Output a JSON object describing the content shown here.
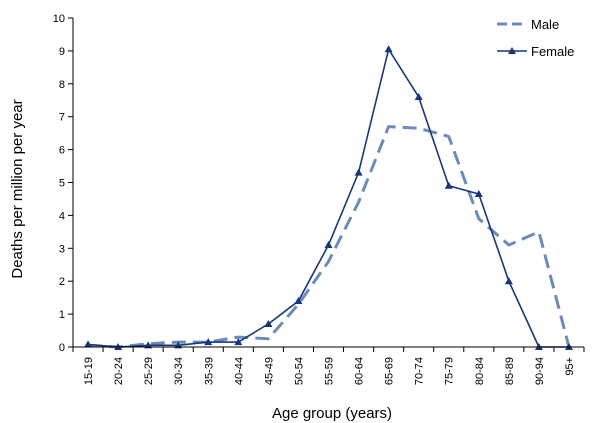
{
  "chart_data": {
    "type": "line",
    "title": "",
    "xlabel": "Age group (years)",
    "ylabel": "Deaths per million per year",
    "categories": [
      "15-19",
      "20-24",
      "25-29",
      "30-34",
      "35-39",
      "40-44",
      "45-49",
      "50-54",
      "55-59",
      "60-64",
      "65-69",
      "70-74",
      "75-79",
      "80-84",
      "85-89",
      "90-94",
      "95+"
    ],
    "ylim": [
      0,
      10
    ],
    "yticks": [
      0,
      1,
      2,
      3,
      4,
      5,
      6,
      7,
      8,
      9,
      10
    ],
    "grid": false,
    "legend_position": "top-right",
    "series": [
      {
        "name": "Male",
        "style": "dashed",
        "color": "#6b8bbd",
        "values": [
          0.05,
          0.0,
          0.1,
          0.15,
          0.15,
          0.3,
          0.25,
          1.3,
          2.6,
          4.4,
          6.7,
          6.65,
          6.4,
          3.9,
          3.1,
          3.5,
          0.0
        ]
      },
      {
        "name": "Female",
        "style": "solid-triangle-markers",
        "color": "#17377a",
        "values": [
          0.08,
          0.0,
          0.05,
          0.05,
          0.15,
          0.15,
          0.7,
          1.4,
          3.1,
          5.3,
          9.05,
          7.6,
          4.9,
          4.65,
          2.0,
          0.0,
          0.0
        ]
      }
    ]
  }
}
